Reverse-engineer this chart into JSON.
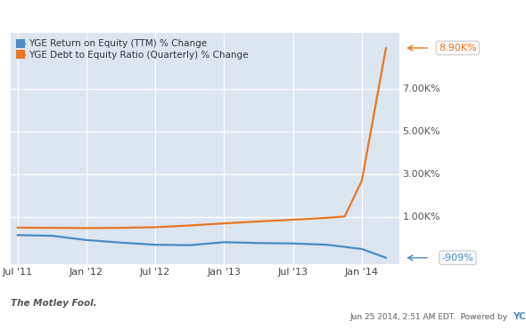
{
  "legend_entries": [
    {
      "label": "YGE Return on Equity (TTM) % Change",
      "color": "#4C8BC4"
    },
    {
      "label": "YGE Debt to Equity Ratio (Quarterly) % Change",
      "color": "#E87722"
    }
  ],
  "x_tick_labels": [
    "Jul '11",
    "Jan '12",
    "Jul '12",
    "Jan '13",
    "Jul '13",
    "Jan '14"
  ],
  "y_tick_labels": [
    "1.00K%",
    "3.00K%",
    "5.00K%",
    "7.00K%"
  ],
  "y_tick_values": [
    1000,
    3000,
    5000,
    7000
  ],
  "ylim": [
    -1200,
    9600
  ],
  "xlim": [
    -0.1,
    5.55
  ],
  "background_color": "#dce6f1",
  "outer_bg_color": "#ffffff",
  "grid_color": "#ffffff",
  "blue_line": {
    "x": [
      0,
      0.5,
      1.0,
      1.5,
      2.0,
      2.5,
      3.0,
      3.5,
      4.0,
      4.5,
      5.0,
      5.35
    ],
    "y": [
      150,
      120,
      -80,
      -200,
      -300,
      -320,
      -180,
      -220,
      -240,
      -300,
      -500,
      -909
    ]
  },
  "orange_line": {
    "x": [
      0,
      0.5,
      1.0,
      1.5,
      2.0,
      2.5,
      3.0,
      3.5,
      4.0,
      4.5,
      4.75,
      5.0,
      5.35
    ],
    "y": [
      500,
      490,
      480,
      490,
      520,
      600,
      700,
      790,
      870,
      960,
      1020,
      2700,
      8900
    ]
  },
  "end_label_blue": "-909%",
  "end_label_orange": "8.90K%",
  "footer_date": "Jun 25 2014, 2:51 AM EDT.  Powered by ",
  "blue_color": "#4C8BC4",
  "orange_color": "#E87722",
  "label_text_color_blue": "#4C8BC4",
  "label_text_color_orange": "#E87722"
}
